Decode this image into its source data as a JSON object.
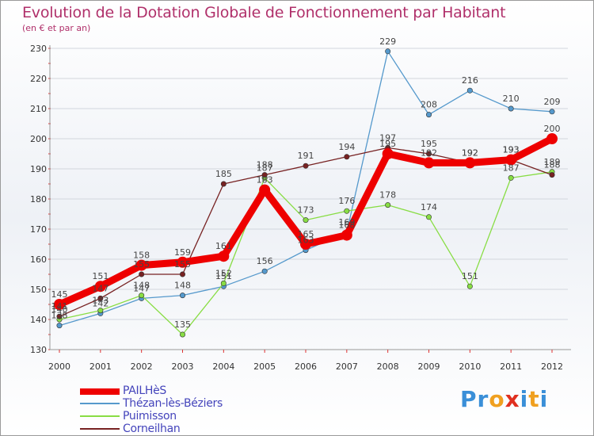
{
  "chart_data": {
    "type": "line",
    "title": "Evolution de la Dotation Globale de Fonctionnement par Habitant",
    "subtitle": "(en € et par an)",
    "x": [
      "2000",
      "2001",
      "2002",
      "2003",
      "2004",
      "2005",
      "2006",
      "2007",
      "2008",
      "2009",
      "2010",
      "2011",
      "2012"
    ],
    "ylim": [
      130,
      230
    ],
    "yticks": [
      130,
      140,
      150,
      160,
      170,
      180,
      190,
      200,
      210,
      220,
      230
    ],
    "grid": true,
    "series": [
      {
        "name": "PAILHèS",
        "color": "#ee0000",
        "values": [
          145,
          151,
          158,
          159,
          161,
          183,
          165,
          168,
          195,
          192,
          192,
          193,
          200
        ]
      },
      {
        "name": "Thézan-lès-Béziers",
        "color": "#5599cc",
        "values": [
          138,
          142,
          147,
          148,
          151,
          156,
          163,
          169,
          229,
          208,
          216,
          210,
          209
        ]
      },
      {
        "name": "Puimisson",
        "color": "#88dd44",
        "values": [
          140,
          143,
          148,
          135,
          152,
          187,
          173,
          176,
          178,
          174,
          151,
          187,
          189
        ]
      },
      {
        "name": "Corneilhan",
        "color": "#772222",
        "values": [
          141,
          147,
          155,
          155,
          185,
          188,
          191,
          194,
          197,
          195,
          192,
          193,
          188
        ]
      }
    ]
  },
  "logo": {
    "text": "Proxiti",
    "letters": [
      "P",
      "r",
      "o",
      "x",
      "i",
      "t",
      "i"
    ],
    "colors": [
      "#3a8fd8",
      "#3a8fd8",
      "#f0a020",
      "#e03020",
      "#3a8fd8",
      "#f0a020",
      "#3a8fd8"
    ]
  }
}
